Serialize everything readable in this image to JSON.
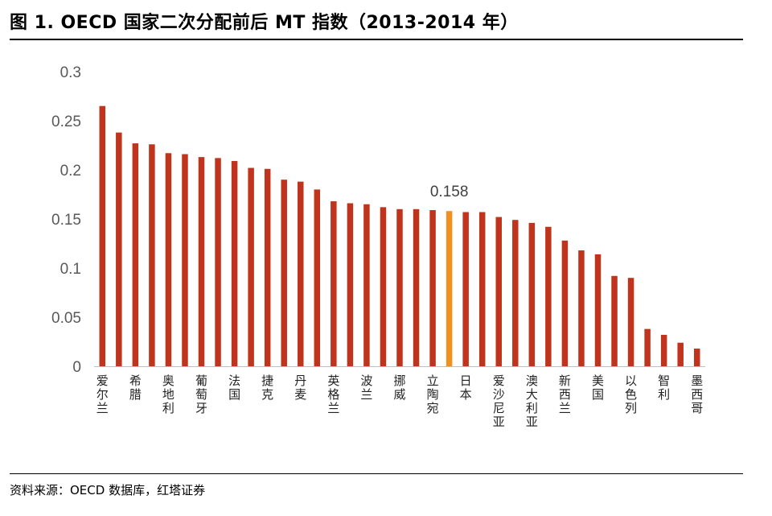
{
  "header": {
    "title": "图 1. OECD 国家二次分配前后 MT 指数（2013-2014 年）"
  },
  "footer": {
    "source": "资料来源：OECD 数据库，红塔证券"
  },
  "colors": {
    "bar": "#c0341d",
    "highlight": "#f0911f",
    "axis": "#bfbfbf"
  },
  "chart_data": {
    "type": "bar",
    "title": "图 1. OECD 国家二次分配前后 MT 指数（2013-2014 年）",
    "xlabel": "",
    "ylabel": "",
    "ylim": [
      0,
      0.3
    ],
    "yticks": [
      "0",
      "0.05",
      "0.1",
      "0.15",
      "0.2",
      "0.25",
      "0.3"
    ],
    "grid": false,
    "legend": "none",
    "categories": [
      "爱尔兰",
      "",
      "希腊",
      "",
      "奥地利",
      "",
      "葡萄牙",
      "",
      "法国",
      "",
      "捷克",
      "",
      "丹麦",
      "",
      "英格兰",
      "",
      "波兰",
      "",
      "挪威",
      "",
      "立陶宛",
      "",
      "日本",
      "",
      "爱沙尼亚",
      "",
      "澳大利亚",
      "",
      "新西兰",
      "",
      "美国",
      "",
      "以色列",
      "",
      "智利",
      "",
      "墨西哥"
    ],
    "values": [
      0.265,
      0.238,
      0.227,
      0.226,
      0.217,
      0.216,
      0.213,
      0.212,
      0.209,
      0.202,
      0.201,
      0.19,
      0.188,
      0.18,
      0.168,
      0.166,
      0.165,
      0.162,
      0.16,
      0.16,
      0.159,
      0.158,
      0.157,
      0.157,
      0.152,
      0.149,
      0.146,
      0.142,
      0.128,
      0.118,
      0.114,
      0.092,
      0.09,
      0.038,
      0.032,
      0.024,
      0.018
    ],
    "highlight_index": 21,
    "data_labels": [
      {
        "index": 21,
        "text": "0.158"
      }
    ]
  }
}
